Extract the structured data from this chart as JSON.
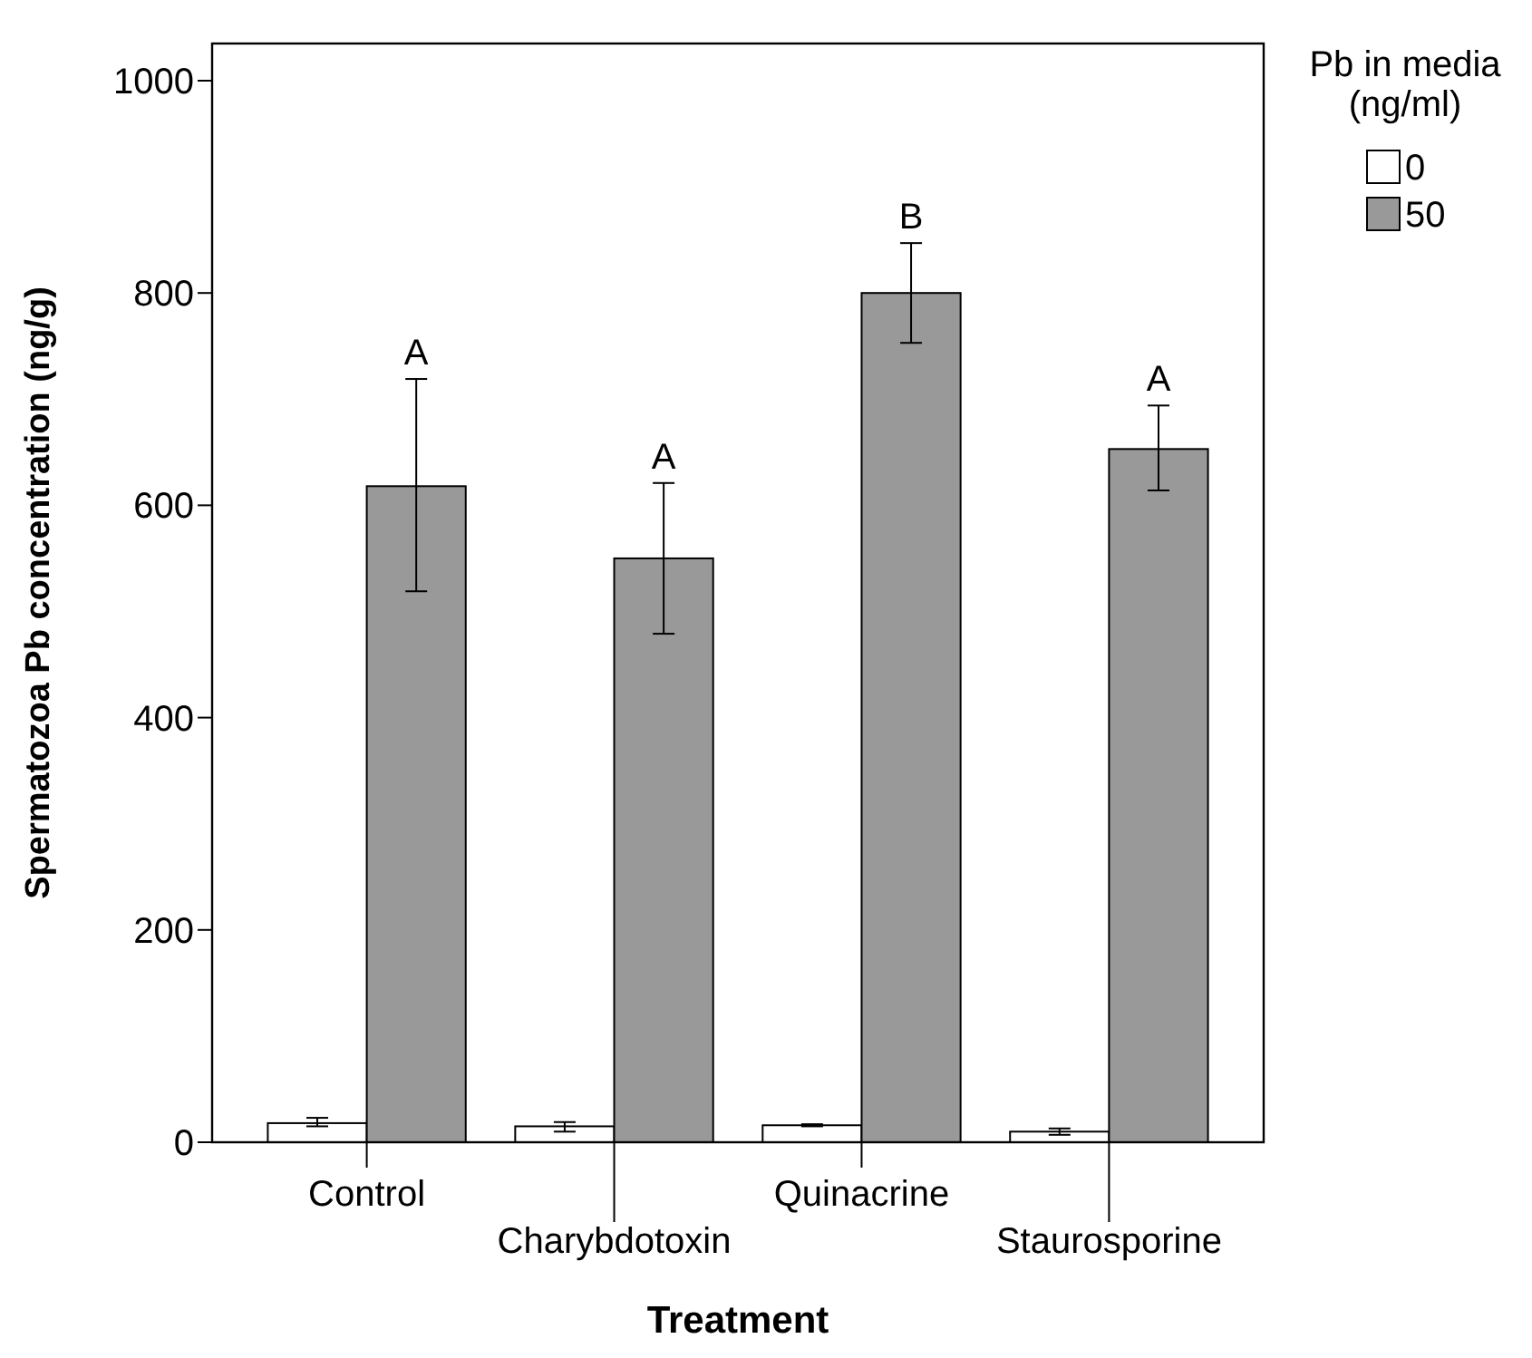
{
  "chart_data": {
    "type": "bar",
    "xlabel": "Treatment",
    "ylabel": "Spermatozoa Pb concentration  (ng/g)",
    "legend_title": "Pb in media\n(ng/ml)",
    "legend": "top right",
    "categories": [
      "Control",
      "Charybdotoxin",
      "Quinacrine",
      "Staurosporine"
    ],
    "series": [
      {
        "name": "0",
        "color": "#ffffff",
        "values": [
          18,
          15,
          16,
          10
        ],
        "errors": [
          [
            15,
            23
          ],
          [
            10,
            19
          ],
          [
            15,
            17
          ],
          [
            7,
            13
          ]
        ]
      },
      {
        "name": "50",
        "color": "#999999",
        "values": [
          618,
          550,
          800,
          653
        ],
        "errors": [
          [
            519,
            719
          ],
          [
            479,
            621
          ],
          [
            753,
            847
          ],
          [
            614,
            694
          ]
        ]
      }
    ],
    "ylim": [
      0,
      1035
    ],
    "yticks": [
      0,
      200,
      400,
      600,
      800,
      1000
    ],
    "grid": false,
    "annotations": [
      "A",
      "A",
      "B",
      "A"
    ]
  }
}
